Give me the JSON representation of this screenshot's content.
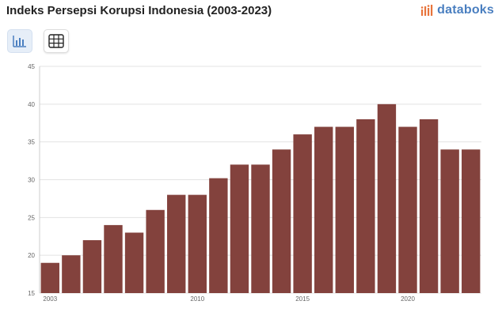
{
  "header": {
    "title": "Indeks Persepsi Korupsi Indonesia (2003-2023)",
    "brand": "databoks"
  },
  "toolbar": {
    "buttons": [
      {
        "icon": "bar-chart-icon",
        "active": true
      },
      {
        "icon": "table-grid-icon",
        "active": false
      }
    ]
  },
  "colors": {
    "bar": "#83423d",
    "accent": "#4a7fc0",
    "logo_mark": "#e8743b"
  },
  "chart_data": {
    "type": "bar",
    "categories": [
      "2003",
      "2004",
      "2005",
      "2006",
      "2007",
      "2008",
      "2009",
      "2010",
      "2011",
      "2012",
      "2013",
      "2014",
      "2015",
      "2016",
      "2017",
      "2018",
      "2019",
      "2020",
      "2021",
      "2022",
      "2023"
    ],
    "values": [
      19,
      20,
      22,
      24,
      23,
      26,
      28,
      28,
      30.2,
      32,
      32,
      34,
      36,
      37,
      37,
      38,
      40,
      37,
      38,
      34,
      34
    ],
    "ylim": [
      15,
      45
    ],
    "yticks": [
      15,
      20,
      25,
      30,
      35,
      40,
      45
    ],
    "xtick_labels": [
      "2003",
      "2010",
      "2015",
      "2020"
    ],
    "grid": true,
    "title": "",
    "xlabel": "",
    "ylabel": ""
  }
}
